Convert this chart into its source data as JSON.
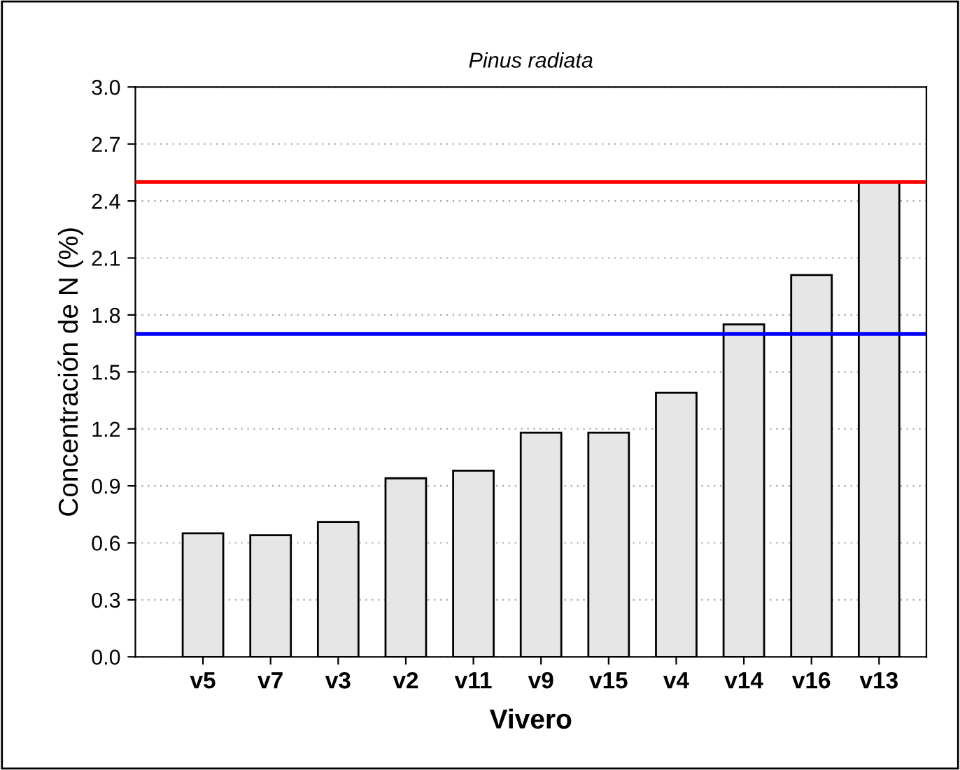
{
  "chart_data": {
    "type": "bar",
    "title": "Pinus radiata",
    "xlabel": "Vivero",
    "ylabel": "Concentración de N (%)",
    "categories": [
      "v5",
      "v7",
      "v3",
      "v2",
      "v11",
      "v9",
      "v15",
      "v4",
      "v14",
      "v16",
      "v13"
    ],
    "values": [
      0.65,
      0.64,
      0.71,
      0.94,
      0.98,
      1.18,
      1.18,
      1.39,
      1.75,
      2.01,
      2.5
    ],
    "color": "#e6e6e6",
    "ylim": [
      0,
      3
    ],
    "yticks": [
      {
        "value": 0,
        "label": "0.0"
      },
      {
        "value": 0.3,
        "label": "0.3"
      },
      {
        "value": 0.6,
        "label": "0.6"
      },
      {
        "value": 0.9,
        "label": "0.9"
      },
      {
        "value": 1.2,
        "label": "1.2"
      },
      {
        "value": 1.5,
        "label": "1.5"
      },
      {
        "value": 1.8,
        "label": "1.8"
      },
      {
        "value": 2.1,
        "label": "2.1"
      },
      {
        "value": 2.4,
        "label": "2.4"
      },
      {
        "value": 2.7,
        "label": "2.7"
      },
      {
        "value": 3,
        "label": "3.0"
      }
    ],
    "grid": "y",
    "ref_lines": [
      {
        "axis": "y",
        "value": 2.5,
        "color": "#ff0000"
      },
      {
        "axis": "y",
        "value": 1.7,
        "color": "#0000ff"
      }
    ]
  }
}
